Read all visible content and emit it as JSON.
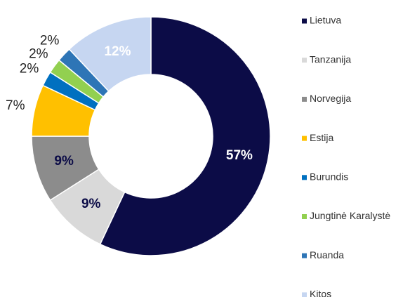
{
  "chart_data": {
    "type": "donut",
    "categories": [
      "Lietuva",
      "Tanzanija",
      "Norvegija",
      "Estija",
      "Burundis",
      "Jungtinė Karalystė",
      "Ruanda",
      "Kitos"
    ],
    "values": [
      57,
      9,
      9,
      7,
      2,
      2,
      2,
      12
    ],
    "value_labels": [
      "57%",
      "9%",
      "9%",
      "7%",
      "2%",
      "2%",
      "2%",
      "12%"
    ],
    "colors": [
      "#0c0c47",
      "#d9d9d9",
      "#8c8c8c",
      "#ffc000",
      "#0070c0",
      "#92d050",
      "#2e75b6",
      "#c6d6f1"
    ],
    "legend": "right"
  }
}
